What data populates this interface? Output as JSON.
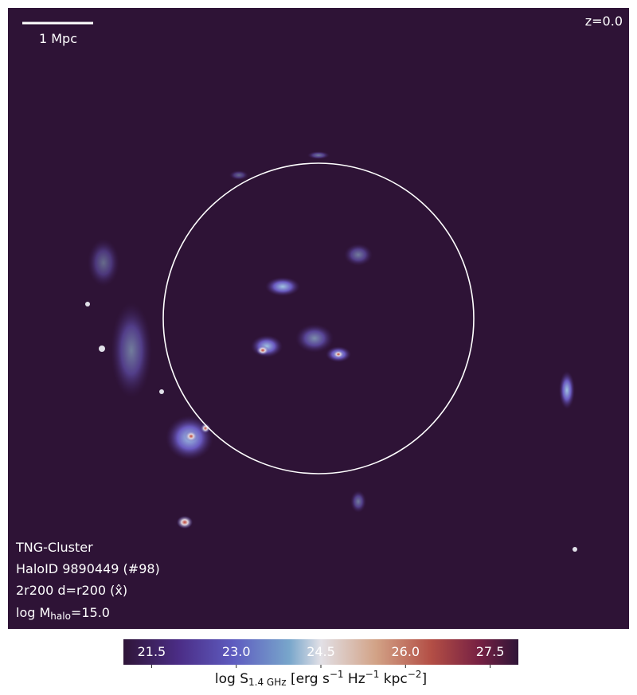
{
  "image": {
    "scale_bar": "1 Mpc",
    "redshift": "z=0.0",
    "info": [
      "TNG-Cluster",
      "HaloID 9890449 (#98)",
      "2r200 d=r200 (x̂)"
    ],
    "mass": {
      "prefix": "log M",
      "sub": "halo",
      "suffix": "=15.0"
    }
  },
  "colorbar": {
    "lim": [
      21,
      28
    ],
    "ticks": [
      21.5,
      {
        "value": 23,
        "label": "23.0"
      },
      24.5,
      {
        "value": 26,
        "label": "26.0"
      },
      27.5
    ],
    "label": [
      "log S",
      "1.4 GHz",
      " [erg s",
      "−1",
      " Hz",
      "−1",
      " kpc",
      "−2",
      "]"
    ]
  }
}
